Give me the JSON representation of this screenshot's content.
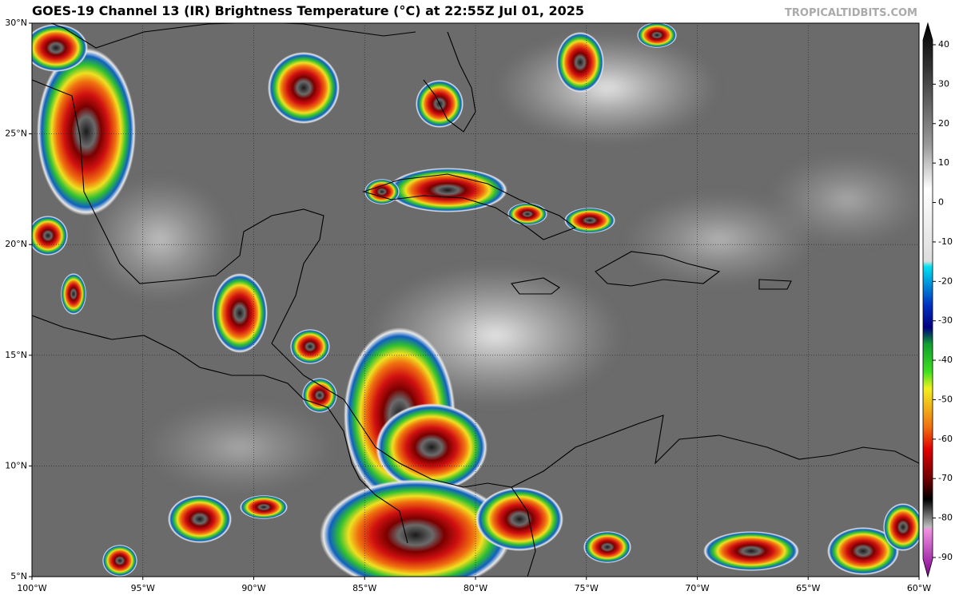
{
  "header": {
    "title": "GOES-19 Channel 13 (IR) Brightness Temperature (°C) at 22:55Z Jul 01, 2025",
    "credit": "TROPICALTIDBITS.COM"
  },
  "map": {
    "lat_labels": [
      "30°N",
      "25°N",
      "20°N",
      "15°N",
      "10°N",
      "5°N"
    ],
    "lon_labels": [
      "100°W",
      "95°W",
      "90°W",
      "85°W",
      "80°W",
      "75°W",
      "70°W",
      "65°W",
      "60°W"
    ]
  },
  "colorbar": {
    "ticks": [
      "40",
      "30",
      "20",
      "10",
      "0",
      "-10",
      "-20",
      "-30",
      "-40",
      "-50",
      "-60",
      "-70",
      "-80",
      "-90"
    ]
  }
}
